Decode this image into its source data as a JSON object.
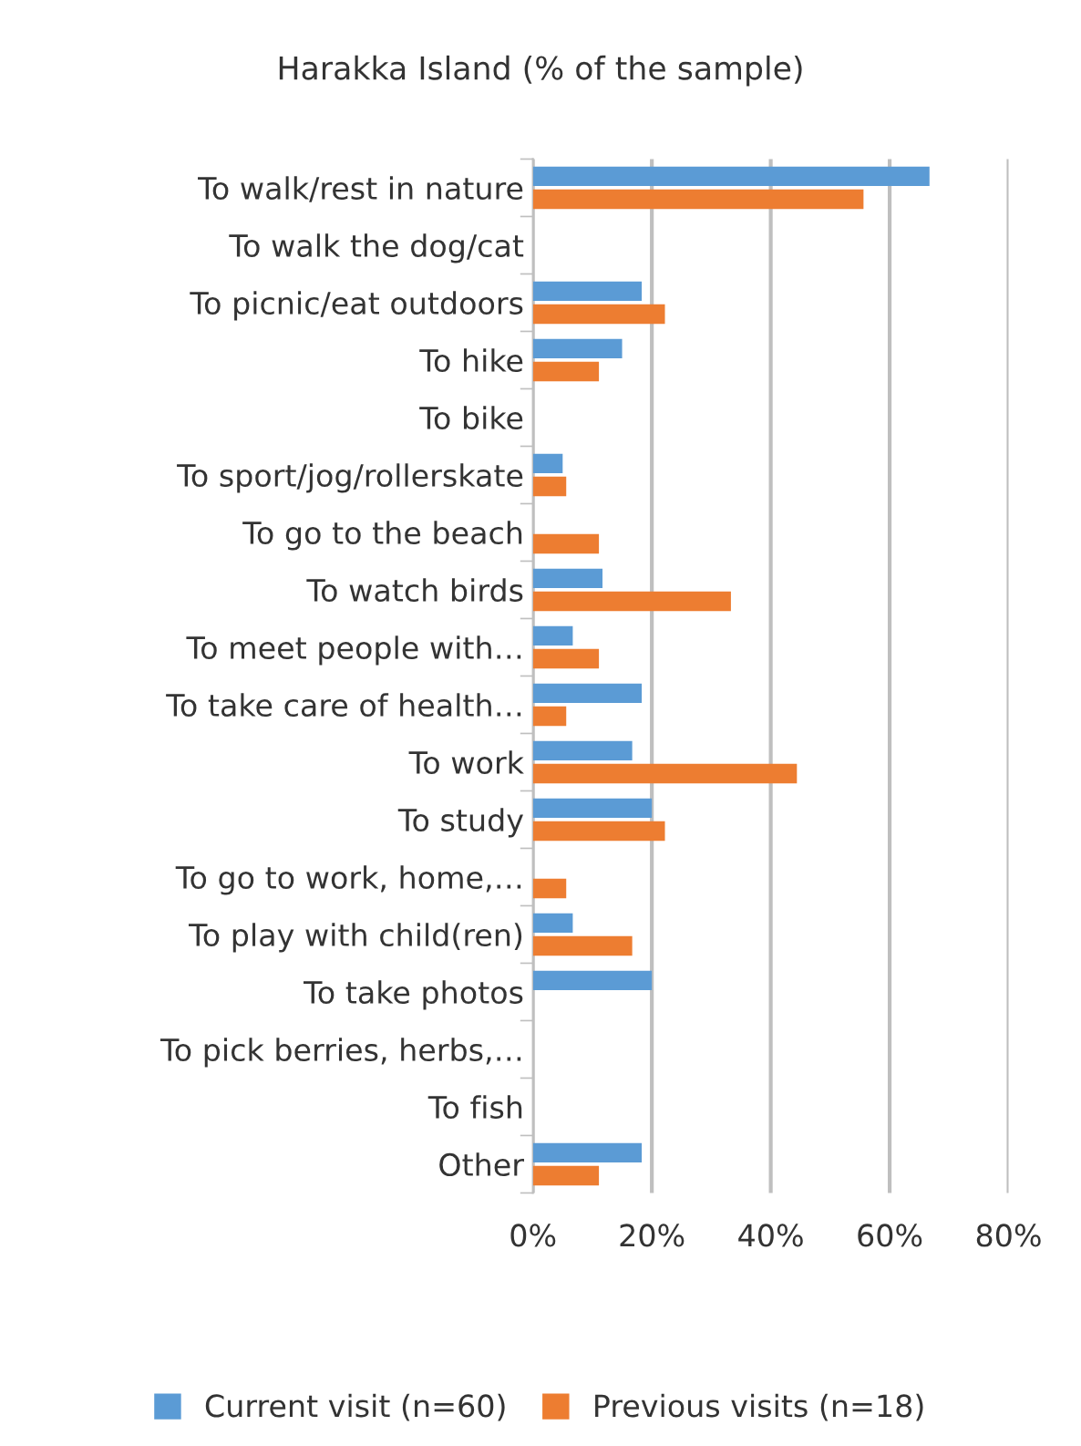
{
  "chart_data": {
    "type": "bar",
    "orientation": "horizontal",
    "title": "Harakka Island (% of the sample)",
    "categories": [
      "To walk/rest in nature",
      "To walk the dog/cat",
      "To picnic/eat outdoors",
      "To hike",
      "To bike",
      "To sport/jog/rollerskate",
      "To go to the beach",
      "To watch birds",
      "To meet people with…",
      "To take care of health…",
      "To work",
      "To study",
      "To go to work, home,…",
      "To play with child(ren)",
      "To take photos",
      "To pick berries, herbs,…",
      "To fish",
      "Other"
    ],
    "series": [
      {
        "name": "Current visit (n=60)",
        "color": "#5b9bd5",
        "values": [
          66.7,
          0,
          18.3,
          15.0,
          0,
          5.0,
          0,
          11.7,
          6.7,
          18.3,
          16.7,
          20.0,
          0,
          6.7,
          20.0,
          0,
          0,
          18.3
        ]
      },
      {
        "name": "Previous visits (n=18)",
        "color": "#ed7d31",
        "values": [
          55.6,
          0,
          22.2,
          11.1,
          0,
          5.6,
          11.1,
          33.3,
          11.1,
          5.6,
          44.4,
          22.2,
          5.6,
          16.7,
          0,
          0,
          0,
          11.1
        ]
      }
    ],
    "xlim": [
      0,
      80
    ],
    "xticks": [
      {
        "value": 0,
        "label": "0%"
      },
      {
        "value": 20,
        "label": "20%"
      },
      {
        "value": 40,
        "label": "40%"
      },
      {
        "value": 60,
        "label": "60%"
      },
      {
        "value": 80,
        "label": "80%"
      }
    ],
    "grid": "x",
    "legend": "bottom"
  }
}
